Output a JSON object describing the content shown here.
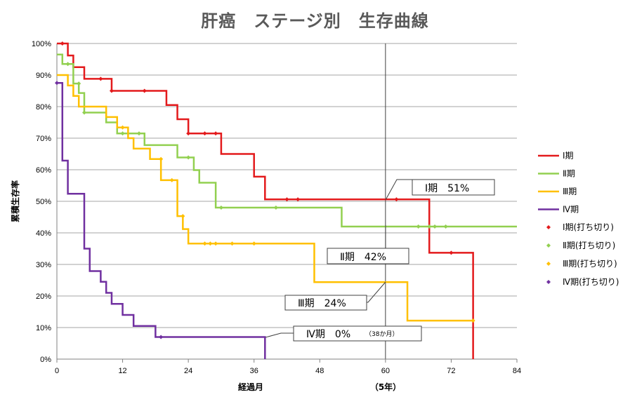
{
  "chart_data": {
    "type": "line",
    "title": "肝癌　ステージ別　生存曲線",
    "xlabel": "経過月",
    "x_note": "（5年）",
    "ylabel": "累積生存率",
    "xlim": [
      0,
      84
    ],
    "ylim": [
      0,
      100
    ],
    "x_ticks": [
      "0",
      "12",
      "24",
      "36",
      "48",
      "60",
      "72",
      "84"
    ],
    "x_tick_values": [
      0,
      12,
      24,
      36,
      48,
      60,
      72,
      84
    ],
    "y_ticks": [
      "0%",
      "10%",
      "20%",
      "30%",
      "40%",
      "50%",
      "60%",
      "70%",
      "80%",
      "90%",
      "100%"
    ],
    "y_tick_values": [
      0,
      10,
      20,
      30,
      40,
      50,
      60,
      70,
      80,
      90,
      100
    ],
    "grid": "horizontal",
    "reference_line_x": 60,
    "legend_position": "right",
    "series": [
      {
        "name": "Ⅰ期",
        "color": "#e31a1c",
        "steps": [
          [
            0,
            100
          ],
          [
            2,
            96.2
          ],
          [
            3,
            92.5
          ],
          [
            5,
            88.8
          ],
          [
            10,
            85
          ],
          [
            20,
            80.5
          ],
          [
            22,
            76
          ],
          [
            24,
            71.5
          ],
          [
            30,
            65
          ],
          [
            36,
            57.8
          ],
          [
            38,
            50.6
          ],
          [
            68,
            33.7
          ],
          [
            76,
            0
          ]
        ],
        "end_x": 76,
        "censored_name": "Ⅰ期(打ち切り)",
        "censored": [
          [
            1,
            100
          ],
          [
            8,
            88.8
          ],
          [
            10,
            85
          ],
          [
            16,
            85
          ],
          [
            24,
            71.5
          ],
          [
            27,
            71.5
          ],
          [
            29,
            71.5
          ],
          [
            42,
            50.6
          ],
          [
            44,
            50.6
          ],
          [
            62,
            50.6
          ],
          [
            72,
            33.7
          ]
        ]
      },
      {
        "name": "Ⅱ期",
        "color": "#92d050",
        "steps": [
          [
            0,
            96.5
          ],
          [
            1,
            93.5
          ],
          [
            3,
            87.3
          ],
          [
            4,
            84.3
          ],
          [
            5,
            78.1
          ],
          [
            9,
            75
          ],
          [
            11,
            71.5
          ],
          [
            16,
            67.8
          ],
          [
            22,
            63.9
          ],
          [
            25,
            59.9
          ],
          [
            26,
            55.9
          ],
          [
            29,
            48
          ],
          [
            52,
            42
          ]
        ],
        "end_x": 84,
        "censored_name": "Ⅱ期(打ち切り)",
        "censored": [
          [
            2,
            93.5
          ],
          [
            4,
            87.3
          ],
          [
            5,
            78.1
          ],
          [
            12,
            71.5
          ],
          [
            15,
            71.5
          ],
          [
            24,
            63.9
          ],
          [
            30,
            48
          ],
          [
            40,
            48
          ],
          [
            66,
            42
          ],
          [
            68,
            42
          ],
          [
            69,
            42
          ],
          [
            71,
            42
          ]
        ]
      },
      {
        "name": "Ⅲ期",
        "color": "#ffc000",
        "steps": [
          [
            0,
            90
          ],
          [
            2,
            86.7
          ],
          [
            3,
            83.4
          ],
          [
            4,
            80
          ],
          [
            9,
            76.7
          ],
          [
            11,
            73.4
          ],
          [
            13,
            70
          ],
          [
            14,
            66.7
          ],
          [
            17,
            63.4
          ],
          [
            19,
            56.7
          ],
          [
            22,
            45.3
          ],
          [
            23,
            41.2
          ],
          [
            24,
            36.6
          ],
          [
            47,
            24.4
          ],
          [
            64,
            12.2
          ]
        ],
        "end_x": 76,
        "censored_name": "Ⅲ期(打ち切り)",
        "censored": [
          [
            12,
            73.4
          ],
          [
            19,
            63.4
          ],
          [
            21,
            56.7
          ],
          [
            23,
            45.3
          ],
          [
            27,
            36.6
          ],
          [
            28,
            36.6
          ],
          [
            29,
            36.6
          ],
          [
            32,
            36.6
          ],
          [
            36,
            36.6
          ],
          [
            76,
            12.2
          ]
        ]
      },
      {
        "name": "Ⅳ期",
        "color": "#7030a0",
        "steps": [
          [
            0,
            87.5
          ],
          [
            1,
            62.9
          ],
          [
            2,
            52.4
          ],
          [
            5,
            35
          ],
          [
            6,
            27.9
          ],
          [
            8,
            24.5
          ],
          [
            9,
            21
          ],
          [
            10,
            17.5
          ],
          [
            12,
            14
          ],
          [
            14,
            10.5
          ],
          [
            18,
            7
          ],
          [
            38,
            0
          ]
        ],
        "end_x": 38,
        "censored_name": "Ⅳ期(打ち切り)",
        "censored": [
          [
            0,
            87.5
          ],
          [
            19,
            7
          ]
        ]
      }
    ],
    "annotations": [
      {
        "text": "Ⅰ期　51%",
        "extra": "",
        "x": 60,
        "y": 50.6
      },
      {
        "text": "Ⅱ期　42%",
        "extra": "",
        "x": 60,
        "y": 42
      },
      {
        "text": "Ⅲ期　24%",
        "extra": "",
        "x": 60,
        "y": 24.4
      },
      {
        "text": "Ⅳ期　0%",
        "extra": "（38か月）",
        "x": 38,
        "y": 7
      }
    ]
  }
}
